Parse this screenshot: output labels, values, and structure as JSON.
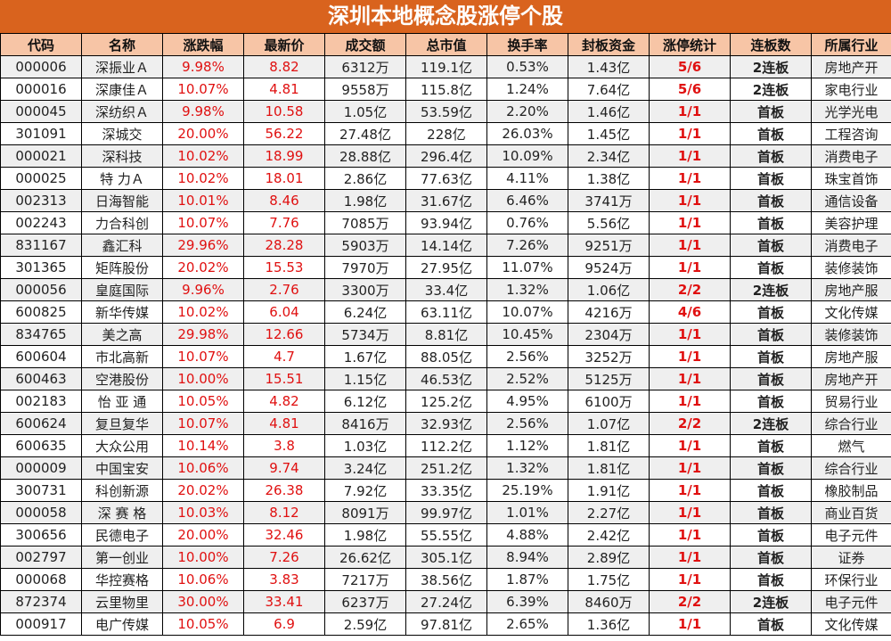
{
  "title": "深圳本地概念股涨停个股",
  "columns": [
    "代码",
    "名称",
    "涨跌幅",
    "最新价",
    "成交额",
    "总市值",
    "换手率",
    "封板资金",
    "涨停统计",
    "连板数",
    "所属行业"
  ],
  "rows": [
    [
      "000006",
      "深振业Ａ",
      "9.98%",
      "8.82",
      "6312万",
      "119.1亿",
      "0.53%",
      "1.43亿",
      "5/6",
      "2连板",
      "房地产开"
    ],
    [
      "000016",
      "深康佳Ａ",
      "10.07%",
      "4.81",
      "9558万",
      "115.8亿",
      "1.24%",
      "7.64亿",
      "5/6",
      "2连板",
      "家电行业"
    ],
    [
      "000045",
      "深纺织Ａ",
      "9.98%",
      "10.58",
      "1.05亿",
      "53.59亿",
      "2.20%",
      "1.46亿",
      "1/1",
      "首板",
      "光学光电"
    ],
    [
      "301091",
      "深城交",
      "20.00%",
      "56.22",
      "27.48亿",
      "228亿",
      "26.03%",
      "1.45亿",
      "1/1",
      "首板",
      "工程咨询"
    ],
    [
      "000021",
      "深科技",
      "10.02%",
      "18.99",
      "28.88亿",
      "296.4亿",
      "10.09%",
      "2.34亿",
      "1/1",
      "首板",
      "消费电子"
    ],
    [
      "000025",
      "特 力Ａ",
      "10.02%",
      "18.01",
      "2.86亿",
      "77.63亿",
      "4.11%",
      "1.38亿",
      "1/1",
      "首板",
      "珠宝首饰"
    ],
    [
      "002313",
      "日海智能",
      "10.01%",
      "8.46",
      "1.98亿",
      "31.67亿",
      "6.46%",
      "3741万",
      "1/1",
      "首板",
      "通信设备"
    ],
    [
      "002243",
      "力合科创",
      "10.07%",
      "7.76",
      "7085万",
      "93.94亿",
      "0.76%",
      "5.56亿",
      "1/1",
      "首板",
      "美容护理"
    ],
    [
      "831167",
      "鑫汇科",
      "29.96%",
      "28.28",
      "5903万",
      "14.14亿",
      "7.26%",
      "9251万",
      "1/1",
      "首板",
      "消费电子"
    ],
    [
      "301365",
      "矩阵股份",
      "20.02%",
      "15.53",
      "7970万",
      "27.95亿",
      "11.07%",
      "9524万",
      "1/1",
      "首板",
      "装修装饰"
    ],
    [
      "000056",
      "皇庭国际",
      "9.96%",
      "2.76",
      "3300万",
      "33.4亿",
      "1.32%",
      "1.06亿",
      "2/2",
      "2连板",
      "房地产服"
    ],
    [
      "600825",
      "新华传媒",
      "10.02%",
      "6.04",
      "6.24亿",
      "63.11亿",
      "10.07%",
      "4216万",
      "4/6",
      "首板",
      "文化传媒"
    ],
    [
      "834765",
      "美之高",
      "29.98%",
      "12.66",
      "5734万",
      "8.81亿",
      "10.45%",
      "2304万",
      "1/1",
      "首板",
      "装修装饰"
    ],
    [
      "600604",
      "市北高新",
      "10.07%",
      "4.7",
      "1.67亿",
      "88.05亿",
      "2.56%",
      "3252万",
      "1/1",
      "首板",
      "房地产服"
    ],
    [
      "600463",
      "空港股份",
      "10.00%",
      "15.51",
      "1.15亿",
      "46.53亿",
      "2.52%",
      "5125万",
      "1/1",
      "首板",
      "房地产开"
    ],
    [
      "002183",
      "怡 亚 通",
      "10.05%",
      "4.82",
      "6.12亿",
      "125.2亿",
      "4.95%",
      "6100万",
      "1/1",
      "首板",
      "贸易行业"
    ],
    [
      "600624",
      "复旦复华",
      "10.07%",
      "4.81",
      "8416万",
      "32.93亿",
      "2.56%",
      "1.07亿",
      "2/2",
      "2连板",
      "综合行业"
    ],
    [
      "600635",
      "大众公用",
      "10.14%",
      "3.8",
      "1.03亿",
      "112.2亿",
      "1.12%",
      "1.81亿",
      "1/1",
      "首板",
      "燃气"
    ],
    [
      "000009",
      "中国宝安",
      "10.06%",
      "9.74",
      "3.24亿",
      "251.2亿",
      "1.32%",
      "1.81亿",
      "1/1",
      "首板",
      "综合行业"
    ],
    [
      "300731",
      "科创新源",
      "20.02%",
      "26.38",
      "7.92亿",
      "33.35亿",
      "25.19%",
      "1.91亿",
      "1/1",
      "首板",
      "橡胶制品"
    ],
    [
      "000058",
      "深 赛 格",
      "10.03%",
      "8.12",
      "8091万",
      "99.97亿",
      "1.01%",
      "2.27亿",
      "1/1",
      "首板",
      "商业百货"
    ],
    [
      "300656",
      "民德电子",
      "20.00%",
      "32.46",
      "1.98亿",
      "55.55亿",
      "4.88%",
      "2.42亿",
      "1/1",
      "首板",
      "电子元件"
    ],
    [
      "002797",
      "第一创业",
      "10.00%",
      "7.26",
      "26.62亿",
      "305.1亿",
      "8.94%",
      "2.89亿",
      "1/1",
      "首板",
      "证券"
    ],
    [
      "000068",
      "华控赛格",
      "10.06%",
      "3.83",
      "7217万",
      "38.56亿",
      "1.87%",
      "1.75亿",
      "1/1",
      "首板",
      "环保行业"
    ],
    [
      "872374",
      "云里物里",
      "30.00%",
      "33.41",
      "6237万",
      "27.24亿",
      "6.39%",
      "8460万",
      "2/2",
      "2连板",
      "电子元件"
    ],
    [
      "000917",
      "电广传媒",
      "10.05%",
      "6.9",
      "2.59亿",
      "97.81亿",
      "2.65%",
      "1.36亿",
      "1/1",
      "首板",
      "文化传媒"
    ]
  ]
}
